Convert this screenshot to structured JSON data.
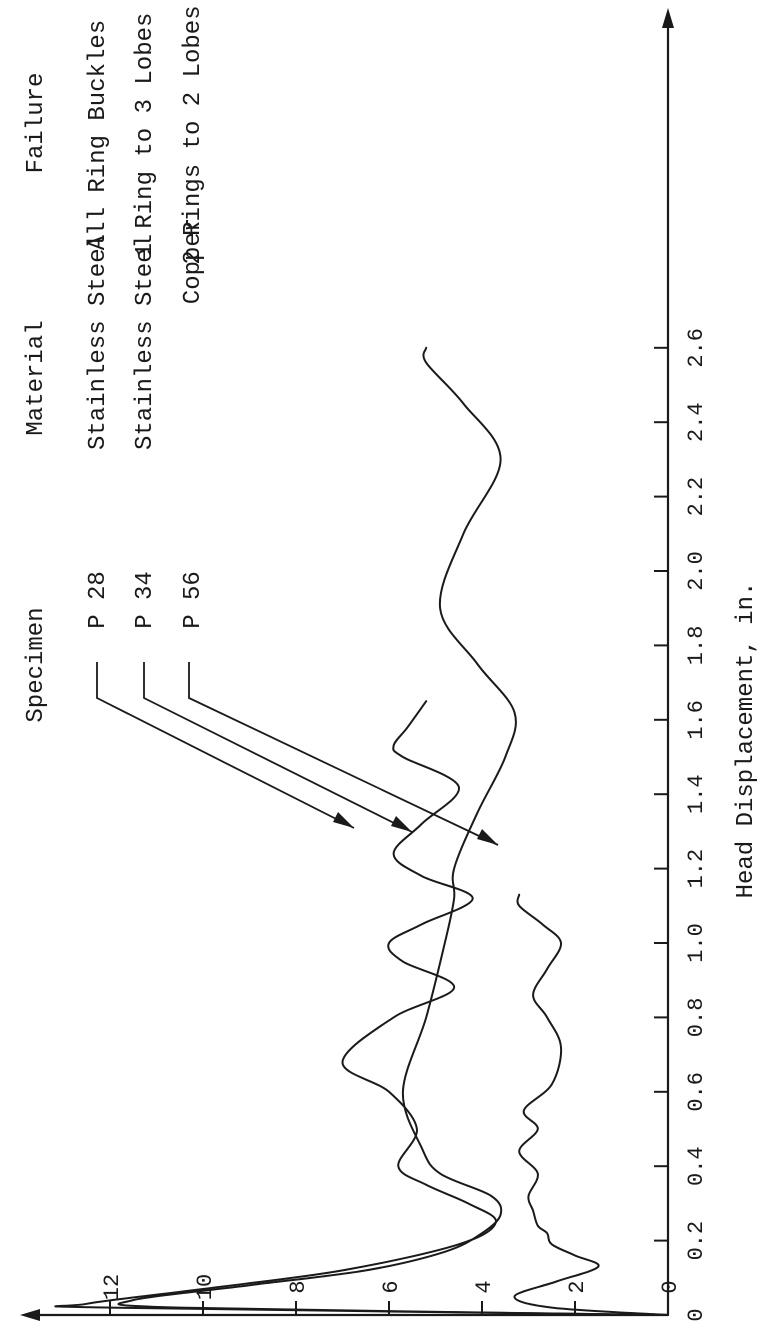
{
  "chart_data": {
    "type": "line",
    "xlabel": "Head Displacement, in.",
    "ylabel": "",
    "xlim": [
      0,
      2.7
    ],
    "ylim": [
      0,
      13
    ],
    "x_ticks": [
      "0",
      "0.2",
      "0.4",
      "0.6",
      "0.8",
      "1.0",
      "1.2",
      "1.4",
      "1.6",
      "1.8",
      "2.0",
      "2.2",
      "2.4",
      "2.6"
    ],
    "y_ticks": [
      "0",
      "2",
      "4",
      "6",
      "8",
      "10",
      "12"
    ],
    "legend": {
      "headers": {
        "specimen": "Specimen",
        "material": "Material",
        "failure": "Failure"
      },
      "rows": [
        {
          "specimen": "P 28",
          "material": "Stainless Steel",
          "failure": "All Ring Buckles"
        },
        {
          "specimen": "P 34",
          "material": "Stainless Steel",
          "failure": "1 Ring to 3 Lobes"
        },
        {
          "specimen": "P 56",
          "material": "Copper",
          "failure": "2 Rings to 2 Lobes"
        }
      ]
    },
    "series": [
      {
        "name": "P 28",
        "points": [
          [
            0,
            0
          ],
          [
            0.02,
            12.0
          ],
          [
            0.03,
            12.5
          ],
          [
            0.07,
            10.0
          ],
          [
            0.12,
            7.0
          ],
          [
            0.19,
            4.5
          ],
          [
            0.25,
            3.7
          ],
          [
            0.3,
            4.3
          ],
          [
            0.35,
            5.2
          ],
          [
            0.4,
            5.8
          ],
          [
            0.5,
            5.4
          ],
          [
            0.6,
            6.0
          ],
          [
            0.68,
            7.0
          ],
          [
            0.8,
            5.9
          ],
          [
            0.88,
            4.6
          ],
          [
            0.95,
            5.7
          ],
          [
            1.0,
            6.0
          ],
          [
            1.05,
            5.3
          ],
          [
            1.12,
            4.2
          ],
          [
            1.18,
            5.3
          ],
          [
            1.24,
            5.9
          ],
          [
            1.32,
            5.3
          ],
          [
            1.42,
            4.5
          ],
          [
            1.5,
            5.7
          ],
          [
            1.53,
            5.9
          ],
          [
            1.58,
            5.6
          ],
          [
            1.65,
            5.2
          ]
        ]
      },
      {
        "name": "P 34",
        "points": [
          [
            0,
            0
          ],
          [
            0.02,
            10.5
          ],
          [
            0.04,
            11.5
          ],
          [
            0.08,
            9.0
          ],
          [
            0.12,
            6.5
          ],
          [
            0.17,
            4.8
          ],
          [
            0.22,
            4.0
          ],
          [
            0.27,
            3.6
          ],
          [
            0.32,
            3.8
          ],
          [
            0.38,
            4.9
          ],
          [
            0.45,
            5.3
          ],
          [
            0.6,
            5.7
          ],
          [
            0.8,
            5.2
          ],
          [
            1.0,
            4.8
          ],
          [
            1.12,
            4.6
          ],
          [
            1.2,
            4.6
          ],
          [
            1.35,
            4.1
          ],
          [
            1.5,
            3.5
          ],
          [
            1.62,
            3.3
          ],
          [
            1.75,
            4.1
          ],
          [
            1.9,
            4.9
          ],
          [
            2.1,
            4.4
          ],
          [
            2.3,
            3.6
          ],
          [
            2.45,
            4.4
          ],
          [
            2.56,
            5.2
          ],
          [
            2.6,
            5.2
          ]
        ]
      },
      {
        "name": "P 56",
        "points": [
          [
            0,
            0
          ],
          [
            0.02,
            2.5
          ],
          [
            0.05,
            3.3
          ],
          [
            0.09,
            2.4
          ],
          [
            0.13,
            1.5
          ],
          [
            0.16,
            2.0
          ],
          [
            0.19,
            2.5
          ],
          [
            0.22,
            2.6
          ],
          [
            0.24,
            2.8
          ],
          [
            0.28,
            2.9
          ],
          [
            0.32,
            3.0
          ],
          [
            0.38,
            2.8
          ],
          [
            0.44,
            3.2
          ],
          [
            0.5,
            2.8
          ],
          [
            0.55,
            3.1
          ],
          [
            0.62,
            2.5
          ],
          [
            0.72,
            2.3
          ],
          [
            0.8,
            2.6
          ],
          [
            0.86,
            2.9
          ],
          [
            0.93,
            2.6
          ],
          [
            1.0,
            2.3
          ],
          [
            1.05,
            2.7
          ],
          [
            1.1,
            3.2
          ],
          [
            1.13,
            3.2
          ]
        ]
      }
    ]
  }
}
